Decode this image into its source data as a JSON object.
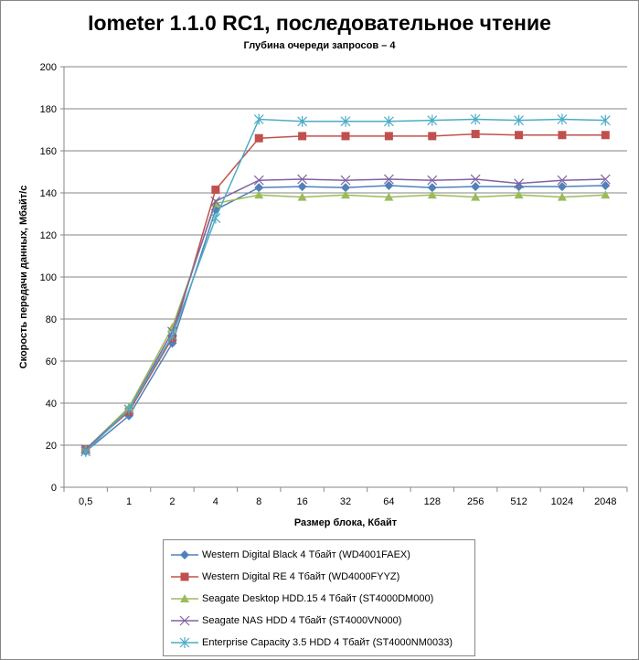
{
  "chart_data": {
    "type": "line",
    "title": "Iometer 1.1.0 RC1, последовательное чтение",
    "subtitle": "Глубина очереди запросов – 4",
    "xlabel": "Размер блока, Кбайт",
    "ylabel": "Скорость передачи данных, Мбайт/с",
    "ylim": [
      0,
      200
    ],
    "yticks": [
      0,
      20,
      40,
      60,
      80,
      100,
      120,
      140,
      160,
      180,
      200
    ],
    "grid": true,
    "legend_position": "bottom",
    "categories": [
      "0,5",
      "1",
      "2",
      "4",
      "8",
      "16",
      "32",
      "64",
      "128",
      "256",
      "512",
      "1024",
      "2048"
    ],
    "series": [
      {
        "name": "Western Digital Black 4 Тбайт (WD4001FAEX)",
        "color": "#4F81BD",
        "marker": "diamond",
        "values": [
          17,
          34,
          68.5,
          132,
          142.5,
          143,
          142.5,
          143.5,
          142.5,
          143,
          143,
          143,
          143.5
        ]
      },
      {
        "name": "Western Digital RE 4 Тбайт (WD4000FYYZ)",
        "color": "#C0504D",
        "marker": "square",
        "values": [
          18,
          36,
          71,
          141.5,
          166,
          167,
          167,
          167,
          167,
          168,
          167.5,
          167.5,
          167.5
        ]
      },
      {
        "name": "Seagate Desktop HDD.15 4 Тбайт (ST4000DM000)",
        "color": "#9BBB59",
        "marker": "triangle",
        "values": [
          18,
          38,
          76,
          135,
          139,
          138,
          139,
          138,
          139,
          138,
          139,
          138,
          139
        ]
      },
      {
        "name": "Seagate NAS HDD 4 Тбайт (ST4000VN000)",
        "color": "#8064A2",
        "marker": "x",
        "values": [
          18,
          37,
          74,
          136,
          146,
          146.5,
          146,
          146.5,
          146,
          146.5,
          144.5,
          146,
          146.5
        ]
      },
      {
        "name": "Enterprise Capacity 3.5 HDD 4 Тбайт (ST4000NM0033)",
        "color": "#4BACC6",
        "marker": "star",
        "values": [
          17,
          37,
          72,
          128,
          175,
          174,
          174,
          174,
          174.5,
          175,
          174.5,
          175,
          174.5
        ]
      }
    ]
  }
}
